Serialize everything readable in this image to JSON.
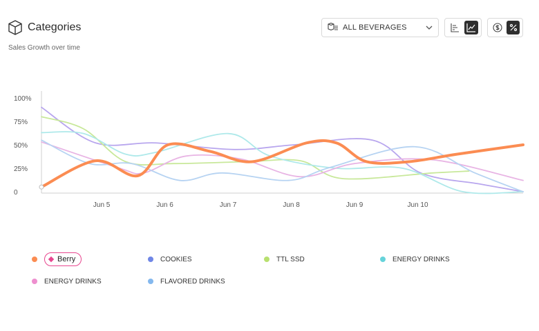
{
  "header": {
    "title": "Categories",
    "subtitle": "Sales Growth over time",
    "icon": "box-icon"
  },
  "filter": {
    "selected": "ALL BEVERAGES"
  },
  "toolbar": {
    "chart_type_options": [
      "bar-chart-icon",
      "line-chart-icon"
    ],
    "chart_type_active": "line-chart-icon",
    "unit_options": [
      "dollar-icon",
      "percent-icon"
    ],
    "unit_active": "percent-icon"
  },
  "chart_data": {
    "type": "line",
    "y_ticks": [
      "100%",
      "75%",
      "50%",
      "25%",
      "0"
    ],
    "ylim": [
      0,
      100
    ],
    "x_ticks": [
      "Jun 5",
      "Jun 6",
      "Jun 7",
      "Jun 8",
      "Jun 9",
      "Jun 10"
    ],
    "xlim": [
      3.3,
      11.3
    ],
    "grid": false,
    "legend_position": "bottom",
    "series": [
      {
        "name": "Berry",
        "color": "#fb8c52",
        "emphasis": true,
        "points": [
          [
            3.3,
            5
          ],
          [
            4.2,
            33
          ],
          [
            4.9,
            17
          ],
          [
            5.4,
            50
          ],
          [
            6.1,
            43
          ],
          [
            6.8,
            32
          ],
          [
            7.7,
            52
          ],
          [
            8.2,
            52
          ],
          [
            8.7,
            32
          ],
          [
            9.4,
            32
          ],
          [
            10.2,
            40
          ],
          [
            11.3,
            50
          ]
        ]
      },
      {
        "name": "COOKIES",
        "color": "#b8a6ee",
        "points": [
          [
            3.3,
            90
          ],
          [
            4.2,
            52
          ],
          [
            5.2,
            52
          ],
          [
            6.5,
            45
          ],
          [
            7.5,
            50
          ],
          [
            8.8,
            55
          ],
          [
            9.6,
            20
          ],
          [
            10.6,
            8
          ],
          [
            11.3,
            0
          ]
        ]
      },
      {
        "name": "TTL SSD",
        "color": "#c8e89a",
        "points": [
          [
            3.3,
            80
          ],
          [
            4.0,
            67
          ],
          [
            4.7,
            32
          ],
          [
            5.5,
            30
          ],
          [
            6.7,
            32
          ],
          [
            7.6,
            33
          ],
          [
            8.3,
            14
          ],
          [
            9.8,
            20
          ],
          [
            10.4,
            22
          ]
        ]
      },
      {
        "name": "ENERGY DRINKS",
        "color": "#aee9ea",
        "points": [
          [
            3.3,
            63
          ],
          [
            4.0,
            62
          ],
          [
            4.7,
            40
          ],
          [
            5.2,
            42
          ],
          [
            6.4,
            62
          ],
          [
            7.1,
            38
          ],
          [
            8.2,
            25
          ],
          [
            9.3,
            25
          ],
          [
            10.3,
            0
          ],
          [
            11.3,
            0
          ]
        ]
      },
      {
        "name": "ENERGY DRINKS",
        "color": "#e8b4e4",
        "points": [
          [
            3.3,
            53
          ],
          [
            4.6,
            25
          ],
          [
            5.0,
            20
          ],
          [
            5.7,
            38
          ],
          [
            6.6,
            35
          ],
          [
            7.6,
            16
          ],
          [
            8.5,
            30
          ],
          [
            9.8,
            34
          ],
          [
            11.3,
            12
          ]
        ]
      },
      {
        "name": "FLAVORED DRINKS",
        "color": "#b6d3f2",
        "points": [
          [
            3.3,
            55
          ],
          [
            4.1,
            30
          ],
          [
            4.8,
            30
          ],
          [
            5.6,
            12
          ],
          [
            6.3,
            20
          ],
          [
            7.4,
            12
          ],
          [
            8.1,
            26
          ],
          [
            9.5,
            48
          ],
          [
            10.5,
            20
          ],
          [
            11.3,
            0
          ]
        ]
      }
    ]
  },
  "legend": [
    {
      "label": "Berry",
      "color": "#fb8c52",
      "selected": true
    },
    {
      "label": "COOKIES",
      "color": "#6f86e6"
    },
    {
      "label": "TTL SSD",
      "color": "#b8e06f"
    },
    {
      "label": "ENERGY DRINKS",
      "color": "#66d3da"
    },
    {
      "label": "ENERGY DRINKS",
      "color": "#ee8fcf"
    },
    {
      "label": "FLAVORED DRINKS",
      "color": "#84b8ee"
    }
  ]
}
